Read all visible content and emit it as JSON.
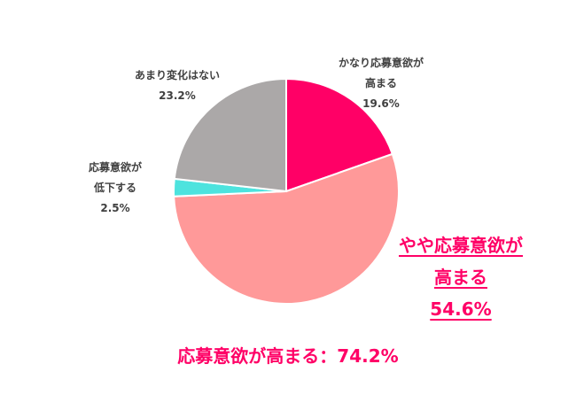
{
  "chart_data": {
    "type": "pie",
    "title": "",
    "center": [
      323,
      216
    ],
    "radius": 127,
    "start_angle_deg": 0,
    "direction": "clockwise",
    "slices": [
      {
        "label": "かなり応募意欲が高まる",
        "value": 19.6,
        "color": "#FF0066"
      },
      {
        "label": "やや応募意欲が高まる",
        "value": 54.6,
        "color": "#FF9999"
      },
      {
        "label": "応募意欲が低下する",
        "value": 2.5,
        "color": "#4DE3DE"
      },
      {
        "label": "あまり変化はない",
        "value": 23.2,
        "color": "#ABA8A8"
      }
    ],
    "annotations": [
      "応募意欲が高まる：74.2%"
    ]
  },
  "labels": {
    "strong_up": {
      "line1": "かなり応募意欲が",
      "line2": "高まる",
      "pct": "19.6%"
    },
    "no_change": {
      "line1": "あまり変化はない",
      "pct": "23.2%"
    },
    "down": {
      "line1": "応募意欲が",
      "line2": "低下する",
      "pct": "2.5%"
    },
    "slight_up": {
      "line1": "やや応募意欲が",
      "line2": "高まる",
      "pct": "54.6%"
    }
  },
  "summary": "応募意欲が高まる：74.2%"
}
